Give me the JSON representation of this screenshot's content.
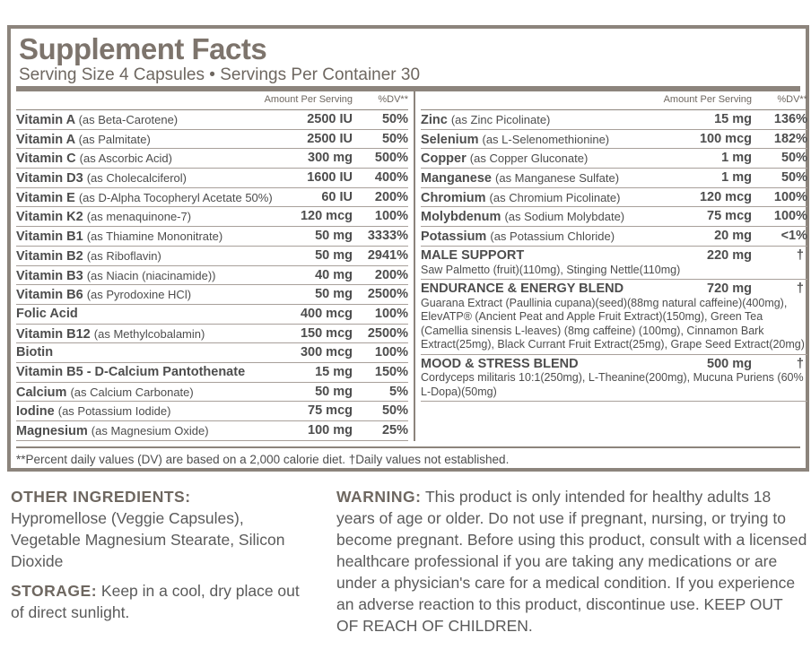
{
  "panel": {
    "title": "Supplement Facts",
    "serving": "Serving Size 4 Capsules • Servings Per Container 30",
    "amount_header": "Amount Per Serving",
    "dv_header": "%DV**",
    "left_rows": [
      {
        "name": "Vitamin A",
        "note": "(as Beta-Carotene)",
        "amount": "2500 IU",
        "dv": "50%"
      },
      {
        "name": "Vitamin A",
        "note": "(as Palmitate)",
        "amount": "2500 IU",
        "dv": "50%"
      },
      {
        "name": "Vitamin C",
        "note": "(as Ascorbic Acid)",
        "amount": "300 mg",
        "dv": "500%"
      },
      {
        "name": "Vitamin D3",
        "note": "(as Cholecalciferol)",
        "amount": "1600 IU",
        "dv": "400%"
      },
      {
        "name": "Vitamin E",
        "note": "(as D-Alpha Tocopheryl Acetate 50%)",
        "amount": "60 IU",
        "dv": "200%"
      },
      {
        "name": "Vitamin K2",
        "note": "(as menaquinone-7)",
        "amount": "120 mcg",
        "dv": "100%"
      },
      {
        "name": "Vitamin B1",
        "note": "(as Thiamine Mononitrate)",
        "amount": "50 mg",
        "dv": "3333%"
      },
      {
        "name": "Vitamin B2",
        "note": "(as Riboflavin)",
        "amount": "50 mg",
        "dv": "2941%"
      },
      {
        "name": "Vitamin B3",
        "note": "(as Niacin (niacinamide))",
        "amount": "40 mg",
        "dv": "200%"
      },
      {
        "name": "Vitamin B6",
        "note": "(as Pyrodoxine HCl)",
        "amount": "50 mg",
        "dv": "2500%"
      },
      {
        "name": "Folic Acid",
        "amount": "400 mcg",
        "dv": "100%"
      },
      {
        "name": "Vitamin B12",
        "note": "(as Methylcobalamin)",
        "amount": "150 mcg",
        "dv": "2500%"
      },
      {
        "name": "Biotin",
        "amount": "300 mcg",
        "dv": "100%"
      },
      {
        "name": "Vitamin B5 - D-Calcium Pantothenate",
        "amount": "15 mg",
        "dv": "150%"
      },
      {
        "name": "Calcium",
        "note": "(as Calcium Carbonate)",
        "amount": "50 mg",
        "dv": "5%"
      },
      {
        "name": "Iodine",
        "note": "(as Potassium Iodide)",
        "amount": "75 mcg",
        "dv": "50%"
      },
      {
        "name": "Magnesium",
        "note": "(as Magnesium Oxide)",
        "amount": "100 mg",
        "dv": "25%"
      }
    ],
    "right_rows": [
      {
        "name": "Zinc",
        "note": "(as Zinc Picolinate)",
        "amount": "15 mg",
        "dv": "136%"
      },
      {
        "name": "Selenium",
        "note": "(as L-Selenomethionine)",
        "amount": "100 mcg",
        "dv": "182%"
      },
      {
        "name": "Copper",
        "note": "(as Copper Gluconate)",
        "amount": "1 mg",
        "dv": "50%"
      },
      {
        "name": "Manganese",
        "note": "(as Manganese Sulfate)",
        "amount": "1 mg",
        "dv": "50%"
      },
      {
        "name": "Chromium",
        "note": "(as Chromium Picolinate)",
        "amount": "120 mcg",
        "dv": "100%"
      },
      {
        "name": "Molybdenum",
        "note": "(as Sodium Molybdate)",
        "amount": "75 mcg",
        "dv": "100%"
      },
      {
        "name": "Potassium",
        "note": "(as Potassium Chloride)",
        "amount": "20 mg",
        "dv": "<1%"
      }
    ],
    "blends": [
      {
        "name": "MALE SUPPORT",
        "amount": "220 mg",
        "dv": "†",
        "description": "Saw Palmetto (fruit)(110mg), Stinging Nettle(110mg)"
      },
      {
        "name": "ENDURANCE & ENERGY BLEND",
        "amount": "720 mg",
        "dv": "†",
        "description": "Guarana Extract (Paullinia cupana)(seed)(88mg natural caffeine)(400mg), ElevATP® (Ancient Peat and Apple Fruit Extract)(150mg), Green Tea (Camellia sinensis L-leaves) (8mg caffeine) (100mg), Cinnamon Bark Extract(25mg), Black Currant Fruit Extract(25mg), Grape Seed Extract(20mg)"
      },
      {
        "name": "MOOD & STRESS BLEND",
        "amount": "500 mg",
        "dv": "†",
        "description": "Cordyceps militaris 10:1(250mg), L-Theanine(200mg), Mucuna Puriens (60% L-Dopa)(50mg)"
      }
    ],
    "footnote": "**Percent daily values (DV) are based on a 2,000 calorie diet. †Daily values not established."
  },
  "other_ingredients": {
    "label": "OTHER INGREDIENTS:",
    "text": "Hypromellose (Veggie Capsules), Vegetable Magnesium Stearate, Silicon Dioxide"
  },
  "storage": {
    "label": "STORAGE:",
    "text": "Keep in a cool, dry place out of direct sunlight."
  },
  "warning": {
    "label": "WARNING:",
    "text": "This product is only intended for healthy adults 18 years of age or older. Do not use if pregnant, nursing, or trying to become pregnant. Before using this product, consult with a licensed healthcare professional if you are taking any medications or are under a physician's care for a medical condition. If you experience an adverse reaction to this product, discontinue use. KEEP OUT OF REACH OF CHILDREN."
  }
}
